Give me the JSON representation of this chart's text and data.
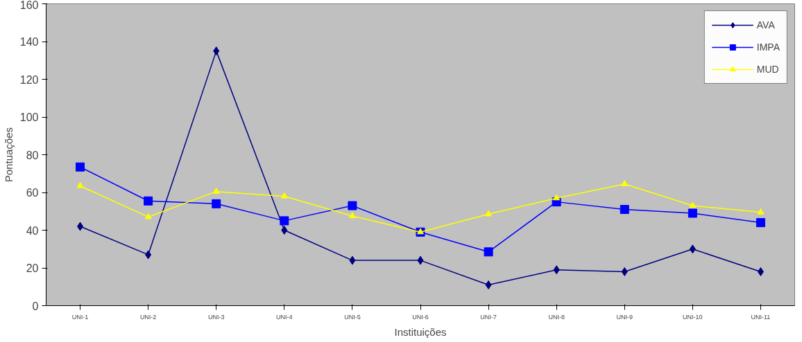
{
  "chart_data": {
    "type": "line",
    "xlabel": "Instituições",
    "ylabel": "Pontuações",
    "categories": [
      "UNI-1",
      "UNI-2",
      "UNI-3",
      "UNI-4",
      "UNI-5",
      "UNI-6",
      "UNI-7",
      "UNI-8",
      "UNI-9",
      "UNI-10",
      "UNI-11"
    ],
    "series": [
      {
        "name": "AVA",
        "color": "#000080",
        "marker": "diamond",
        "values": [
          42,
          27,
          135,
          40,
          24,
          24,
          11,
          19,
          18,
          30,
          18
        ]
      },
      {
        "name": "IMPA",
        "color": "#0000ff",
        "marker": "square",
        "values": [
          73.5,
          55.5,
          54,
          45,
          53,
          39,
          28.5,
          55,
          51,
          49,
          44
        ]
      },
      {
        "name": "MUD",
        "color": "#ffff00",
        "marker": "triangle",
        "values": [
          63.5,
          47,
          60.5,
          58,
          47.5,
          39,
          48.5,
          57,
          64.5,
          53,
          49.5
        ]
      }
    ],
    "ylim": [
      0,
      160
    ],
    "yticks": [
      0,
      20,
      40,
      60,
      80,
      100,
      120,
      140,
      160
    ],
    "grid": false,
    "legend": "top right",
    "line_style": "solid"
  }
}
